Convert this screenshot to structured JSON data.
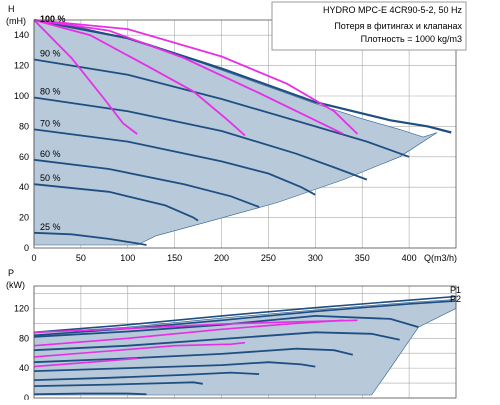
{
  "colors": {
    "envelope_fill": "#b8c9da",
    "curve_dark": "#1f4f82",
    "curve_edge": "#2c5f92",
    "system_curve": "#e62fe6",
    "grid": "#a9a9a9",
    "info_border": "#9a9a9a"
  },
  "info_box": {
    "title": "HYDRO MPC-E 4CR90-5-2, 50 Hz",
    "line1": "Потеря в фитингах и клапанах",
    "line2": "Плотность = 1000 kg/m3"
  },
  "chart_data": [
    {
      "type": "line",
      "name": "head",
      "ylabel_top": "H",
      "ylabel_unit": "(mH)",
      "xlabel": "Q(m3/h)",
      "xlim": [
        0,
        450
      ],
      "ylim": [
        0,
        150
      ],
      "xticks": [
        0,
        50,
        100,
        150,
        200,
        250,
        300,
        350,
        400
      ],
      "yticks": [
        0,
        20,
        40,
        60,
        80,
        100,
        120,
        140
      ],
      "grid": true,
      "envelope": [
        [
          0,
          150
        ],
        [
          50,
          145
        ],
        [
          100,
          138
        ],
        [
          150,
          128
        ],
        [
          200,
          117
        ],
        [
          250,
          106
        ],
        [
          300,
          95
        ],
        [
          350,
          85
        ],
        [
          390,
          78
        ],
        [
          415,
          73
        ],
        [
          430,
          76
        ],
        [
          390,
          60
        ],
        [
          330,
          45
        ],
        [
          260,
          30
        ],
        [
          190,
          18
        ],
        [
          130,
          8
        ],
        [
          110,
          2
        ],
        [
          0,
          2
        ]
      ],
      "speed_curves": [
        {
          "label": "100 %",
          "points": [
            [
              0,
              150
            ],
            [
              100,
              138
            ],
            [
              200,
              118
            ],
            [
              300,
              96
            ],
            [
              380,
              84
            ],
            [
              420,
              80
            ],
            [
              445,
              76
            ]
          ]
        },
        {
          "label": "90 %",
          "points": [
            [
              0,
              124
            ],
            [
              100,
              114
            ],
            [
              200,
              98
            ],
            [
              300,
              80
            ],
            [
              355,
              70
            ],
            [
              400,
              60
            ]
          ]
        },
        {
          "label": "80 %",
          "points": [
            [
              0,
              99
            ],
            [
              100,
              90
            ],
            [
              200,
              77
            ],
            [
              280,
              62
            ],
            [
              320,
              53
            ],
            [
              355,
              45
            ]
          ]
        },
        {
          "label": "70 %",
          "points": [
            [
              0,
              78
            ],
            [
              100,
              70
            ],
            [
              200,
              57
            ],
            [
              250,
              49
            ],
            [
              285,
              40
            ],
            [
              300,
              35
            ]
          ]
        },
        {
          "label": "60 %",
          "points": [
            [
              0,
              58
            ],
            [
              80,
              52
            ],
            [
              160,
              42
            ],
            [
              210,
              34
            ],
            [
              240,
              27
            ]
          ]
        },
        {
          "label": "50 %",
          "points": [
            [
              0,
              42
            ],
            [
              80,
              37
            ],
            [
              140,
              28
            ],
            [
              170,
              20
            ],
            [
              175,
              18
            ]
          ]
        },
        {
          "label": "25 %",
          "points": [
            [
              0,
              10
            ],
            [
              40,
              9
            ],
            [
              80,
              6
            ],
            [
              110,
              3
            ],
            [
              120,
              2
            ]
          ]
        }
      ],
      "system_curves": [
        [
          [
            0,
            150
          ],
          [
            40,
            125
          ],
          [
            75,
            98
          ],
          [
            95,
            82
          ],
          [
            110,
            75
          ]
        ],
        [
          [
            0,
            150
          ],
          [
            60,
            140
          ],
          [
            120,
            120
          ],
          [
            170,
            103
          ],
          [
            205,
            85
          ],
          [
            225,
            74
          ]
        ],
        [
          [
            0,
            150
          ],
          [
            80,
            143
          ],
          [
            160,
            125
          ],
          [
            240,
            102
          ],
          [
            290,
            87
          ],
          [
            330,
            75
          ]
        ],
        [
          [
            0,
            150
          ],
          [
            100,
            144
          ],
          [
            200,
            126
          ],
          [
            270,
            108
          ],
          [
            320,
            90
          ],
          [
            345,
            75
          ]
        ]
      ]
    },
    {
      "type": "line",
      "name": "power",
      "ylabel_top": "P",
      "ylabel_unit": "(kW)",
      "xlim": [
        0,
        450
      ],
      "ylim": [
        0,
        150
      ],
      "yticks": [
        0,
        40,
        80,
        120
      ],
      "grid": true,
      "series_labels": [
        "P1",
        "P2"
      ],
      "envelope": [
        [
          0,
          87
        ],
        [
          100,
          95
        ],
        [
          200,
          107
        ],
        [
          300,
          118
        ],
        [
          400,
          128
        ],
        [
          450,
          132
        ],
        [
          450,
          120
        ],
        [
          410,
          95
        ],
        [
          380,
          40
        ],
        [
          360,
          4
        ],
        [
          0,
          4
        ]
      ],
      "power_curves": [
        {
          "points": [
            [
              0,
              88
            ],
            [
              100,
              98
            ],
            [
              200,
              110
            ],
            [
              300,
              121
            ],
            [
              400,
              131
            ],
            [
              450,
              136
            ]
          ]
        },
        {
          "points": [
            [
              0,
              84
            ],
            [
              100,
              93
            ],
            [
              200,
              104
            ],
            [
              300,
              116
            ],
            [
              400,
              126
            ],
            [
              450,
              130
            ]
          ]
        },
        {
          "points": [
            [
              0,
              82
            ],
            [
              100,
              89
            ],
            [
              200,
              98
            ],
            [
              300,
              110
            ],
            [
              380,
              106
            ],
            [
              410,
              95
            ]
          ]
        },
        {
          "points": [
            [
              0,
              64
            ],
            [
              100,
              70
            ],
            [
              200,
              79
            ],
            [
              300,
              88
            ],
            [
              360,
              86
            ],
            [
              390,
              78
            ]
          ]
        },
        {
          "points": [
            [
              0,
              48
            ],
            [
              100,
              53
            ],
            [
              200,
              59
            ],
            [
              280,
              66
            ],
            [
              320,
              64
            ],
            [
              340,
              58
            ]
          ]
        },
        {
          "points": [
            [
              0,
              36
            ],
            [
              100,
              40
            ],
            [
              200,
              44
            ],
            [
              250,
              48
            ],
            [
              285,
              45
            ],
            [
              300,
              42
            ]
          ]
        },
        {
          "points": [
            [
              0,
              24
            ],
            [
              80,
              27
            ],
            [
              160,
              31
            ],
            [
              210,
              34
            ],
            [
              240,
              32
            ]
          ]
        },
        {
          "points": [
            [
              0,
              16
            ],
            [
              80,
              18
            ],
            [
              140,
              20
            ],
            [
              170,
              21
            ],
            [
              180,
              19
            ]
          ]
        },
        {
          "points": [
            [
              0,
              5
            ],
            [
              50,
              6
            ],
            [
              100,
              6
            ],
            [
              120,
              5
            ]
          ]
        }
      ],
      "system_curves": [
        [
          [
            0,
            42
          ],
          [
            60,
            48
          ],
          [
            110,
            53
          ]
        ],
        [
          [
            0,
            55
          ],
          [
            80,
            63
          ],
          [
            150,
            70
          ],
          [
            210,
            72
          ],
          [
            225,
            74
          ]
        ],
        [
          [
            0,
            70
          ],
          [
            100,
            80
          ],
          [
            200,
            92
          ],
          [
            280,
            100
          ],
          [
            330,
            104
          ]
        ],
        [
          [
            0,
            88
          ],
          [
            100,
            93
          ],
          [
            200,
            99
          ],
          [
            280,
            102
          ],
          [
            345,
            104
          ]
        ]
      ]
    }
  ]
}
